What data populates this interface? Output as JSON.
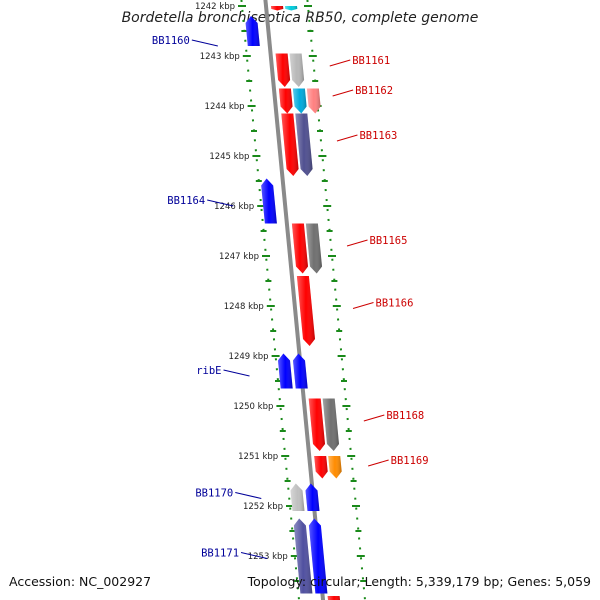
{
  "title": "Bordetella bronchiseptica RB50, complete genome",
  "footer": {
    "accession": "Accession: NC_002927",
    "summary": "Topology: circular; Length: 5,339,179 bp; Genes: 5,059"
  },
  "colors": {
    "forward": "#ff0000",
    "reverse": "#0000ff",
    "backbone": "#8a8a8a",
    "tick": "#1a8a1a",
    "label_forward": "#cc0000",
    "label_reverse": "#000099"
  },
  "scale": {
    "ticks": [
      "1242 kbp",
      "1243 kbp",
      "1244 kbp",
      "1245 kbp",
      "1246 kbp",
      "1247 kbp",
      "1248 kbp",
      "1249 kbp",
      "1250 kbp",
      "1251 kbp",
      "1252 kbp",
      "1253 kbp"
    ]
  },
  "features": [
    {
      "start": 1242.0,
      "end": 1242.09,
      "strand": "+",
      "color": "#ff0000"
    },
    {
      "start": 1242.0,
      "end": 1242.09,
      "strand": "+",
      "color": "#00ccdd"
    },
    {
      "start": 1242.2,
      "end": 1242.8,
      "strand": "-",
      "color": "#0000ff"
    },
    {
      "start": 1242.95,
      "end": 1243.62,
      "strand": "+",
      "color": "#ff0000"
    },
    {
      "start": 1242.95,
      "end": 1243.62,
      "strand": "+",
      "color": "#b8b8b8"
    },
    {
      "start": 1243.65,
      "end": 1244.15,
      "strand": "+",
      "color": "#ff0000"
    },
    {
      "start": 1243.65,
      "end": 1244.15,
      "strand": "+",
      "color": "#00aadd"
    },
    {
      "start": 1243.65,
      "end": 1244.15,
      "strand": "+",
      "color": "#ff8080"
    },
    {
      "start": 1244.15,
      "end": 1245.4,
      "strand": "+",
      "color": "#ff0000"
    },
    {
      "start": 1244.15,
      "end": 1245.4,
      "strand": "+",
      "color": "#505090"
    },
    {
      "start": 1245.45,
      "end": 1246.35,
      "strand": "-",
      "color": "#0000ff"
    },
    {
      "start": 1246.35,
      "end": 1247.35,
      "strand": "+",
      "color": "#ff0000"
    },
    {
      "start": 1246.35,
      "end": 1247.35,
      "strand": "+",
      "color": "#707070"
    },
    {
      "start": 1247.4,
      "end": 1248.8,
      "strand": "+",
      "color": "#ff0000"
    },
    {
      "start": 1248.95,
      "end": 1249.65,
      "strand": "-",
      "color": "#0000ff"
    },
    {
      "start": 1248.95,
      "end": 1249.65,
      "strand": "-",
      "color": "#0000ff"
    },
    {
      "start": 1249.85,
      "end": 1250.9,
      "strand": "+",
      "color": "#ff0000"
    },
    {
      "start": 1249.85,
      "end": 1250.9,
      "strand": "+",
      "color": "#707070"
    },
    {
      "start": 1251.0,
      "end": 1251.45,
      "strand": "+",
      "color": "#ff0000"
    },
    {
      "start": 1251.0,
      "end": 1251.45,
      "strand": "+",
      "color": "#ff8c00"
    },
    {
      "start": 1251.55,
      "end": 1252.1,
      "strand": "-",
      "color": "#c0c0c0"
    },
    {
      "start": 1251.55,
      "end": 1252.1,
      "strand": "-",
      "color": "#0000ff"
    },
    {
      "start": 1252.25,
      "end": 1253.75,
      "strand": "-",
      "color": "#5050a0"
    },
    {
      "start": 1252.25,
      "end": 1253.75,
      "strand": "-",
      "color": "#0000ff"
    },
    {
      "start": 1253.8,
      "end": 1254.1,
      "strand": "+",
      "color": "#ff0000"
    }
  ],
  "labels": [
    {
      "text": "BB1160",
      "strand": "-",
      "kbp": 1242.8
    },
    {
      "text": "BB1161",
      "strand": "+",
      "kbp": 1243.2
    },
    {
      "text": "BB1162",
      "strand": "+",
      "kbp": 1243.8
    },
    {
      "text": "BB1163",
      "strand": "+",
      "kbp": 1244.7
    },
    {
      "text": "BB1164",
      "strand": "-",
      "kbp": 1246.0
    },
    {
      "text": "BB1165",
      "strand": "+",
      "kbp": 1246.8
    },
    {
      "text": "BB1166",
      "strand": "+",
      "kbp": 1248.05
    },
    {
      "text": "ribE",
      "strand": "-",
      "kbp": 1249.4
    },
    {
      "text": "BB1168",
      "strand": "+",
      "kbp": 1250.3
    },
    {
      "text": "BB1169",
      "strand": "+",
      "kbp": 1251.2
    },
    {
      "text": "BB1170",
      "strand": "-",
      "kbp": 1251.85
    },
    {
      "text": "BB1171",
      "strand": "-",
      "kbp": 1253.05
    }
  ]
}
